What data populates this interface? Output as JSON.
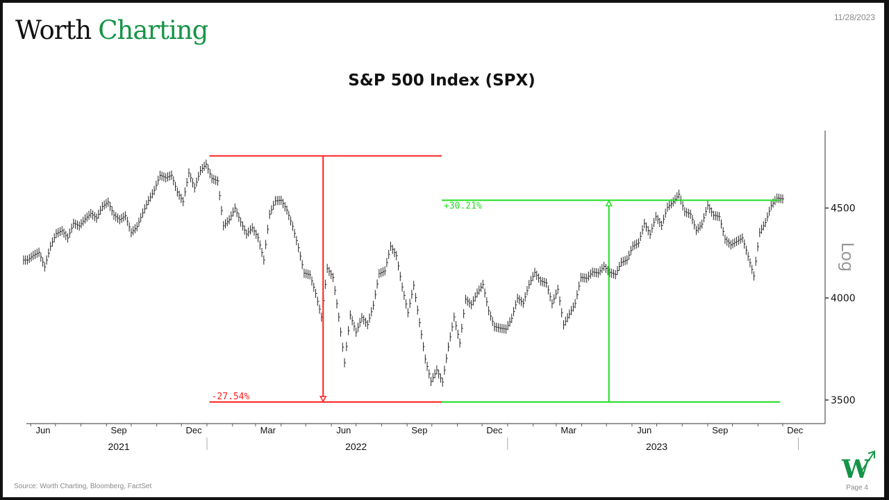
{
  "header": {
    "logo_word1": "Worth",
    "logo_word2": "Charting",
    "date": "11/28/2023"
  },
  "footer": {
    "source": "Source: Worth Charting, Bloomberg, FactSet",
    "page": "Page 4",
    "logo_letter": "W"
  },
  "colors": {
    "brand_green": "#159447",
    "decline": "#ff2020",
    "advance": "#22dd22",
    "bars": "#222222"
  },
  "chart_data": {
    "type": "ohlc-line",
    "title": "S&P 500 Index (SPX)",
    "y_scale": "log",
    "y_scale_label": "Log",
    "ylim": [
      3383,
      4980
    ],
    "y_ticks": [
      3500,
      4000,
      4500
    ],
    "y_tick_labels": [
      "3500",
      "4000",
      "4500"
    ],
    "x_range": [
      "2021-05-24",
      "2023-12-31"
    ],
    "x_month_ticks": [
      {
        "label": "Jun",
        "date": "2021-06-16"
      },
      {
        "label": "Sep",
        "date": "2021-09-16"
      },
      {
        "label": "Dec",
        "date": "2021-12-16"
      },
      {
        "label": "Mar",
        "date": "2022-03-16"
      },
      {
        "label": "Jun",
        "date": "2022-06-16"
      },
      {
        "label": "Sep",
        "date": "2022-09-16"
      },
      {
        "label": "Dec",
        "date": "2022-12-16"
      },
      {
        "label": "Mar",
        "date": "2023-03-16"
      },
      {
        "label": "Jun",
        "date": "2023-06-16"
      },
      {
        "label": "Sep",
        "date": "2023-09-16"
      },
      {
        "label": "Dec",
        "date": "2023-12-16"
      }
    ],
    "x_year_labels": [
      {
        "label": "2021",
        "date": "2021-09-16"
      },
      {
        "label": "2022",
        "date": "2022-07-01"
      },
      {
        "label": "2023",
        "date": "2023-07-01"
      }
    ],
    "year_separators": [
      "2022-01-01",
      "2023-01-01",
      "2023-12-20"
    ],
    "series": {
      "name": "SPX weekly close",
      "start_date": "2021-05-28",
      "interval_days": 7,
      "values": [
        4204,
        4229,
        4247,
        4166,
        4280,
        4352,
        4369,
        4327,
        4411,
        4395,
        4436,
        4468,
        4441,
        4509,
        4535,
        4458,
        4432,
        4455,
        4357,
        4391,
        4471,
        4544,
        4605,
        4697,
        4682,
        4698,
        4595,
        4538,
        4712,
        4620,
        4726,
        4766,
        4677,
        4662,
        4397,
        4431,
        4500,
        4418,
        4349,
        4385,
        4329,
        4204,
        4463,
        4543,
        4546,
        4488,
        4393,
        4272,
        4132,
        4123,
        4024,
        3901,
        4158,
        4109,
        3901,
        3675,
        3912,
        3825,
        3899,
        3863,
        3962,
        4130,
        4145,
        4280,
        4228,
        4058,
        3924,
        4067,
        3873,
        3693,
        3586,
        3640,
        3583,
        3752,
        3901,
        3771,
        3993,
        3965,
        4026,
        4072,
        3934,
        3852,
        3845,
        3840,
        3895,
        3999,
        3973,
        4071,
        4136,
        4090,
        4079,
        3970,
        4046,
        3862,
        3917,
        3971,
        4109,
        4105,
        4138,
        4133,
        4169,
        4136,
        4124,
        4192,
        4205,
        4282,
        4299,
        4410,
        4348,
        4450,
        4399,
        4505,
        4536,
        4582,
        4478,
        4464,
        4370,
        4406,
        4516,
        4457,
        4450,
        4320,
        4288,
        4308,
        4327,
        4224,
        4117,
        4358,
        4415,
        4514,
        4559,
        4554
      ]
    },
    "annotations": [
      {
        "name": "decline",
        "label": "-27.54%",
        "high": 4818,
        "low": 3491,
        "from_date": "2022-01-04",
        "to_date": "2022-10-13",
        "arrow_date": "2022-05-22",
        "direction": "down"
      },
      {
        "name": "advance",
        "label": "+30.21%",
        "high": 4546,
        "low": 3491,
        "from_date": "2022-10-13",
        "to_date": "2023-11-28",
        "arrow_date": "2023-05-04",
        "direction": "up"
      }
    ]
  }
}
